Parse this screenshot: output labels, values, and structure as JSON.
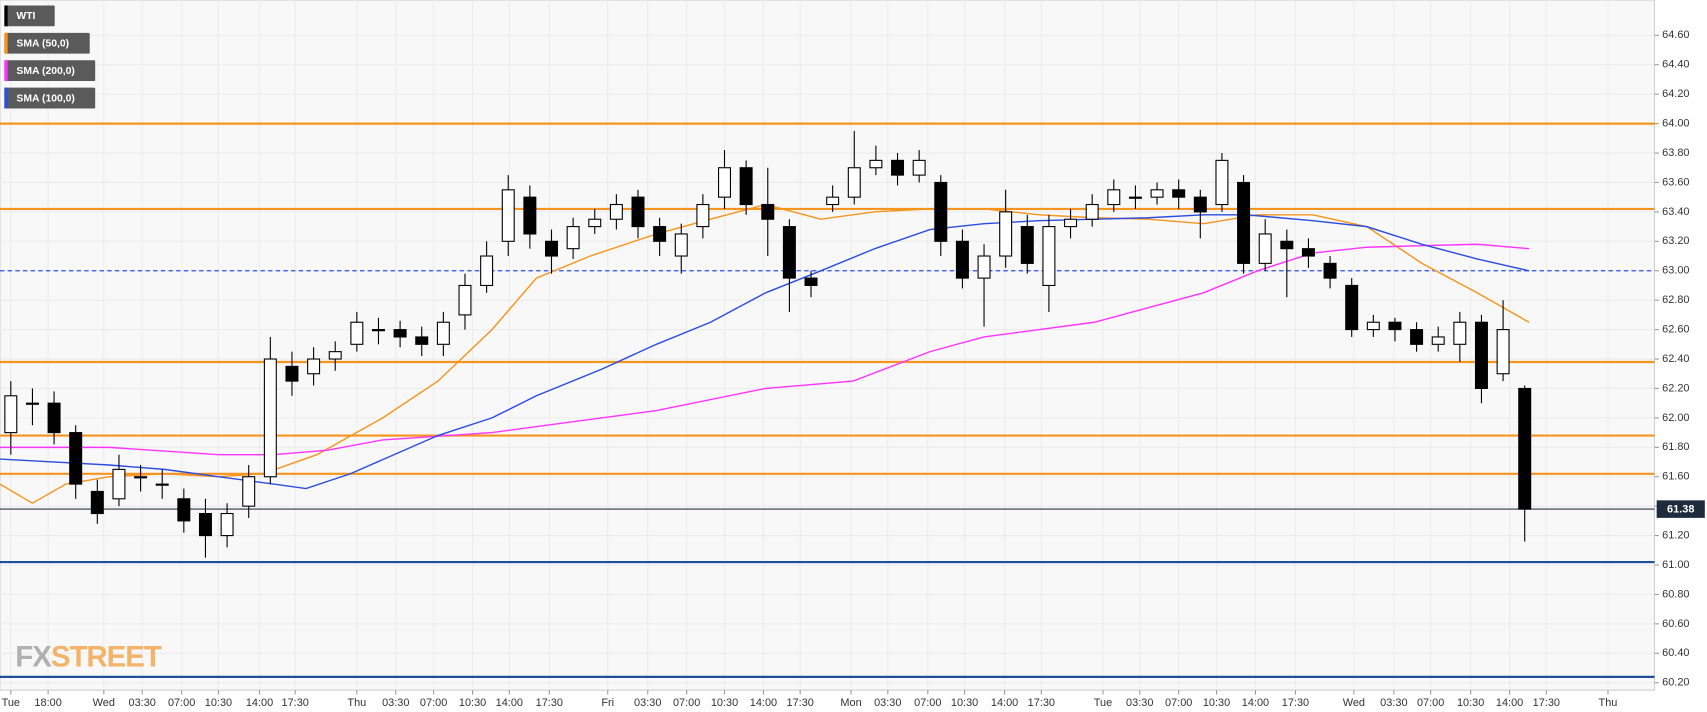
{
  "chart_data": {
    "type": "candlestick",
    "name": "WTI",
    "up_color": "#ffffff",
    "down_color": "#000000",
    "x": [
      0,
      2,
      4,
      6,
      8,
      10,
      12,
      14,
      16,
      18,
      20,
      22,
      24,
      26,
      28,
      30,
      32,
      34,
      36,
      38,
      40,
      42,
      44,
      46,
      48,
      50,
      52,
      54,
      56,
      58,
      60,
      62,
      64,
      66,
      68,
      70,
      72,
      74,
      76,
      78,
      80,
      82,
      84,
      86,
      88,
      90,
      92,
      94,
      96,
      98,
      100,
      102,
      104,
      106,
      108,
      110,
      112,
      114,
      116,
      118,
      120,
      122,
      124,
      126,
      128,
      130,
      132,
      134,
      136,
      138,
      140
    ],
    "open": [
      61.9,
      62.1,
      62.1,
      61.9,
      61.5,
      61.45,
      61.6,
      61.55,
      61.45,
      61.35,
      61.2,
      61.4,
      61.6,
      62.35,
      62.3,
      62.4,
      62.5,
      62.6,
      62.6,
      62.55,
      62.5,
      62.7,
      62.9,
      63.2,
      63.5,
      63.2,
      63.15,
      63.3,
      63.35,
      63.5,
      63.3,
      63.1,
      63.3,
      63.5,
      63.7,
      63.45,
      63.3,
      62.95,
      63.45,
      63.5,
      63.7,
      63.75,
      63.65,
      63.6,
      63.2,
      62.95,
      63.1,
      63.3,
      62.9,
      63.3,
      63.35,
      63.45,
      63.5,
      63.5,
      63.55,
      63.5,
      63.45,
      63.6,
      63.05,
      63.2,
      63.15,
      63.05,
      62.9,
      62.6,
      62.65,
      62.6,
      62.5,
      62.5,
      62.65,
      62.3,
      62.2
    ],
    "high": [
      62.25,
      62.2,
      62.18,
      61.95,
      61.58,
      61.75,
      61.68,
      61.65,
      61.52,
      61.45,
      61.42,
      61.68,
      62.55,
      62.45,
      62.48,
      62.52,
      62.72,
      62.68,
      62.66,
      62.62,
      62.72,
      62.98,
      63.2,
      63.65,
      63.58,
      63.28,
      63.36,
      63.42,
      63.52,
      63.55,
      63.36,
      63.32,
      63.52,
      63.82,
      63.75,
      63.7,
      63.35,
      63.0,
      63.58,
      63.95,
      63.85,
      63.8,
      63.82,
      63.65,
      63.28,
      63.18,
      63.55,
      63.38,
      63.38,
      63.42,
      63.52,
      63.62,
      63.58,
      63.6,
      63.62,
      63.55,
      63.8,
      63.65,
      63.35,
      63.28,
      63.22,
      63.1,
      62.95,
      62.7,
      62.68,
      62.65,
      62.62,
      62.72,
      62.7,
      62.8,
      62.22
    ],
    "low": [
      61.75,
      61.95,
      61.82,
      61.45,
      61.28,
      61.4,
      61.5,
      61.45,
      61.22,
      61.05,
      61.12,
      61.32,
      61.55,
      62.15,
      62.22,
      62.32,
      62.45,
      62.5,
      62.48,
      62.42,
      62.42,
      62.6,
      62.85,
      63.1,
      63.15,
      62.98,
      63.08,
      63.25,
      63.28,
      63.22,
      63.1,
      62.98,
      63.22,
      63.42,
      63.38,
      63.1,
      62.72,
      62.82,
      63.4,
      63.45,
      63.65,
      63.58,
      63.6,
      63.1,
      62.88,
      62.62,
      63.02,
      62.98,
      62.72,
      63.22,
      63.3,
      63.4,
      63.42,
      63.45,
      63.42,
      63.22,
      63.4,
      62.98,
      63.0,
      62.82,
      63.02,
      62.88,
      62.55,
      62.55,
      62.52,
      62.45,
      62.45,
      62.38,
      62.1,
      62.25,
      61.16
    ],
    "close": [
      62.15,
      62.1,
      61.9,
      61.55,
      61.35,
      61.65,
      61.6,
      61.55,
      61.3,
      61.2,
      61.35,
      61.6,
      62.4,
      62.25,
      62.4,
      62.45,
      62.65,
      62.6,
      62.55,
      62.5,
      62.65,
      62.9,
      63.1,
      63.55,
      63.25,
      63.1,
      63.3,
      63.35,
      63.45,
      63.3,
      63.2,
      63.25,
      63.45,
      63.7,
      63.45,
      63.35,
      62.95,
      62.9,
      63.5,
      63.7,
      63.75,
      63.65,
      63.75,
      63.2,
      62.95,
      63.1,
      63.4,
      63.05,
      63.3,
      63.35,
      63.45,
      63.55,
      63.5,
      63.55,
      63.5,
      63.4,
      63.75,
      63.05,
      63.25,
      63.15,
      63.1,
      62.95,
      62.6,
      62.65,
      62.6,
      62.5,
      62.55,
      62.65,
      62.2,
      62.6,
      61.38
    ],
    "overlays": [
      {
        "name": "SMA (50,0)",
        "color": "#f7941d",
        "x": [
          -1.0,
          2.0,
          5.1,
          9.1,
          14.2,
          19.2,
          23.3,
          28.3,
          34.4,
          39.5,
          44.5,
          48.6,
          53.6,
          59.7,
          64.7,
          69.8,
          74.9,
          79.9,
          85.0,
          90.0,
          95.1,
          100.2,
          105.2,
          110.3,
          115.3,
          120.4,
          125.4,
          130.5,
          135.6,
          140.4
        ],
        "values": [
          61.55,
          61.42,
          61.55,
          61.6,
          61.62,
          61.6,
          61.62,
          61.75,
          62.0,
          62.25,
          62.6,
          62.95,
          63.1,
          63.25,
          63.35,
          63.45,
          63.35,
          63.4,
          63.42,
          63.42,
          63.38,
          63.36,
          63.35,
          63.32,
          63.38,
          63.38,
          63.3,
          63.05,
          62.85,
          62.65
        ]
      },
      {
        "name": "SMA (200,0)",
        "color": "#ff33ff",
        "x": [
          -1.0,
          9.1,
          19.2,
          24.3,
          29.3,
          34.4,
          44.5,
          49.6,
          59.7,
          69.8,
          77.9,
          85.0,
          90.0,
          100.2,
          110.3,
          115.3,
          120.4,
          125.4,
          130.5,
          135.6,
          140.4
        ],
        "values": [
          61.8,
          61.8,
          61.75,
          61.75,
          61.78,
          61.85,
          61.9,
          61.95,
          62.05,
          62.2,
          62.25,
          62.45,
          62.55,
          62.65,
          62.85,
          63.0,
          63.12,
          63.16,
          63.17,
          63.18,
          63.15
        ]
      },
      {
        "name": "SMA (100,0)",
        "color": "#2b4de0",
        "x": [
          -1.0,
          4.1,
          9.1,
          14.2,
          19.2,
          24.3,
          27.3,
          31.4,
          39.5,
          44.5,
          48.6,
          54.6,
          59.7,
          64.7,
          69.8,
          74.9,
          79.9,
          85.0,
          90.0,
          95.1,
          100.2,
          105.2,
          110.3,
          114.3,
          120.4,
          125.4,
          130.5,
          135.6,
          140.4
        ],
        "values": [
          61.72,
          61.7,
          61.68,
          61.65,
          61.6,
          61.55,
          61.52,
          61.62,
          61.88,
          62.0,
          62.15,
          62.33,
          62.5,
          62.65,
          62.85,
          63.0,
          63.15,
          63.28,
          63.32,
          63.34,
          63.35,
          63.36,
          63.38,
          63.38,
          63.34,
          63.3,
          63.18,
          63.08,
          63.0
        ]
      }
    ],
    "levels": [
      {
        "value": 64.0,
        "color": "#f7941d",
        "style": "solid"
      },
      {
        "value": 63.42,
        "color": "#f7941d",
        "style": "solid"
      },
      {
        "value": 63.0,
        "color": "#2b4de0",
        "style": "dashed"
      },
      {
        "value": 62.38,
        "color": "#f7941d",
        "style": "solid"
      },
      {
        "value": 61.88,
        "color": "#f7941d",
        "style": "solid"
      },
      {
        "value": 61.62,
        "color": "#f7941d",
        "style": "solid"
      },
      {
        "value": 61.02,
        "color": "#1f4e9c",
        "style": "solid"
      },
      {
        "value": 60.24,
        "color": "#1f4e9c",
        "style": "solid"
      }
    ],
    "last_price": {
      "value": 61.38,
      "label": "61.38"
    },
    "watermark": [
      "FX",
      "STREET"
    ],
    "grid": true,
    "xlim": [
      -1,
      152
    ],
    "xticks": [
      {
        "value": 0.0,
        "label": "Tue"
      },
      {
        "value": 3.45,
        "label": "18:00"
      },
      {
        "value": 8.6,
        "label": "Wed"
      },
      {
        "value": 12.15,
        "label": "03:30"
      },
      {
        "value": 15.8,
        "label": "07:00"
      },
      {
        "value": 19.2,
        "label": "10:30"
      },
      {
        "value": 23.0,
        "label": "14:00"
      },
      {
        "value": 26.3,
        "label": "17:30"
      },
      {
        "value": 32.0,
        "label": "Thu"
      },
      {
        "value": 35.6,
        "label": "03:30"
      },
      {
        "value": 39.1,
        "label": "07:00"
      },
      {
        "value": 42.7,
        "label": "10:30"
      },
      {
        "value": 46.1,
        "label": "14:00"
      },
      {
        "value": 49.8,
        "label": "17:30"
      },
      {
        "value": 55.2,
        "label": "Fri"
      },
      {
        "value": 58.9,
        "label": "03:30"
      },
      {
        "value": 62.5,
        "label": "07:00"
      },
      {
        "value": 66.0,
        "label": "10:30"
      },
      {
        "value": 69.6,
        "label": "14:00"
      },
      {
        "value": 73.0,
        "label": "17:30"
      },
      {
        "value": 77.7,
        "label": "Mon"
      },
      {
        "value": 81.1,
        "label": "03:30"
      },
      {
        "value": 84.8,
        "label": "07:00"
      },
      {
        "value": 88.2,
        "label": "10:30"
      },
      {
        "value": 91.9,
        "label": "14:00"
      },
      {
        "value": 95.3,
        "label": "17:30"
      },
      {
        "value": 101.0,
        "label": "Tue"
      },
      {
        "value": 104.4,
        "label": "03:30"
      },
      {
        "value": 108.0,
        "label": "07:00"
      },
      {
        "value": 111.5,
        "label": "10:30"
      },
      {
        "value": 115.1,
        "label": "14:00"
      },
      {
        "value": 118.8,
        "label": "17:30"
      },
      {
        "value": 124.2,
        "label": "Wed"
      },
      {
        "value": 127.9,
        "label": "03:30"
      },
      {
        "value": 131.3,
        "label": "07:00"
      },
      {
        "value": 135.0,
        "label": "10:30"
      },
      {
        "value": 138.6,
        "label": "14:00"
      },
      {
        "value": 142.0,
        "label": "17:30"
      },
      {
        "value": 147.7,
        "label": "Thu"
      }
    ],
    "ylim": [
      60.15,
      64.84
    ],
    "yticks": [
      {
        "value": 60.2,
        "label": "60.20"
      },
      {
        "value": 60.4,
        "label": "60.40"
      },
      {
        "value": 60.6,
        "label": "60.60"
      },
      {
        "value": 60.8,
        "label": "60.80"
      },
      {
        "value": 61.0,
        "label": "61.00"
      },
      {
        "value": 61.2,
        "label": "61.20"
      },
      {
        "value": 61.4,
        "label": "61.40"
      },
      {
        "value": 61.6,
        "label": "61.60"
      },
      {
        "value": 61.8,
        "label": "61.80"
      },
      {
        "value": 62.0,
        "label": "62.00"
      },
      {
        "value": 62.2,
        "label": "62.20"
      },
      {
        "value": 62.4,
        "label": "62.40"
      },
      {
        "value": 62.6,
        "label": "62.60"
      },
      {
        "value": 62.8,
        "label": "62.80"
      },
      {
        "value": 63.0,
        "label": "63.00"
      },
      {
        "value": 63.2,
        "label": "63.20"
      },
      {
        "value": 63.4,
        "label": "63.40"
      },
      {
        "value": 63.6,
        "label": "63.60"
      },
      {
        "value": 63.8,
        "label": "63.80"
      },
      {
        "value": 64.0,
        "label": "64.00"
      },
      {
        "value": 64.2,
        "label": "64.20"
      },
      {
        "value": 64.4,
        "label": "64.40"
      },
      {
        "value": 64.6,
        "label": "64.60"
      }
    ]
  }
}
